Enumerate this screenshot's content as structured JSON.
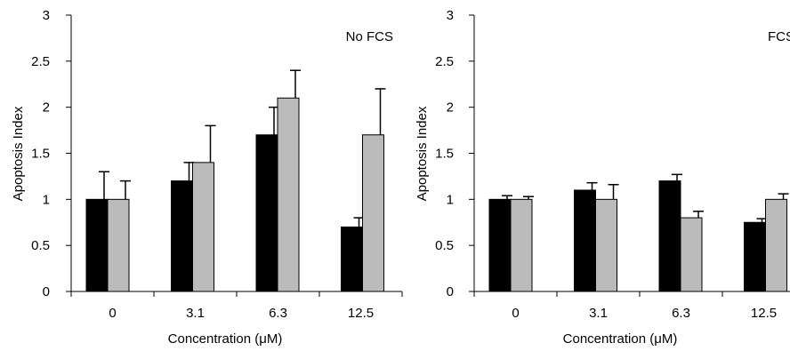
{
  "chart_data": [
    {
      "type": "bar",
      "annotation": "No FCS",
      "xlabel": "Concentration (μM)",
      "ylabel": "Apoptosis Index",
      "ylim": [
        0,
        3
      ],
      "yticks": [
        "0",
        "0.5",
        "1",
        "1.5",
        "2",
        "2.5",
        "3"
      ],
      "categories": [
        "0",
        "3.1",
        "6.3",
        "12.5"
      ],
      "series": [
        {
          "color": "#000000",
          "values": [
            1.0,
            1.2,
            1.7,
            0.7
          ],
          "error": [
            0.3,
            0.2,
            0.3,
            0.1
          ]
        },
        {
          "color": "#bbbbbb",
          "values": [
            1.0,
            1.4,
            2.1,
            1.7
          ],
          "error": [
            0.2,
            0.4,
            0.3,
            0.5
          ]
        }
      ],
      "grid": false
    },
    {
      "type": "bar",
      "annotation": "FCS",
      "xlabel": "Concentration (μM)",
      "ylabel": "Apoptosis Index",
      "ylim": [
        0,
        3
      ],
      "yticks": [
        "0",
        "0.5",
        "1",
        "1.5",
        "2",
        "2.5",
        "3"
      ],
      "categories": [
        "0",
        "3.1",
        "6.3",
        "12.5"
      ],
      "series": [
        {
          "color": "#000000",
          "values": [
            1.0,
            1.1,
            1.2,
            0.75
          ],
          "error": [
            0.04,
            0.08,
            0.07,
            0.04
          ]
        },
        {
          "color": "#bbbbbb",
          "values": [
            1.0,
            1.0,
            0.8,
            1.0
          ],
          "error": [
            0.03,
            0.16,
            0.07,
            0.06
          ]
        }
      ],
      "grid": false
    }
  ]
}
